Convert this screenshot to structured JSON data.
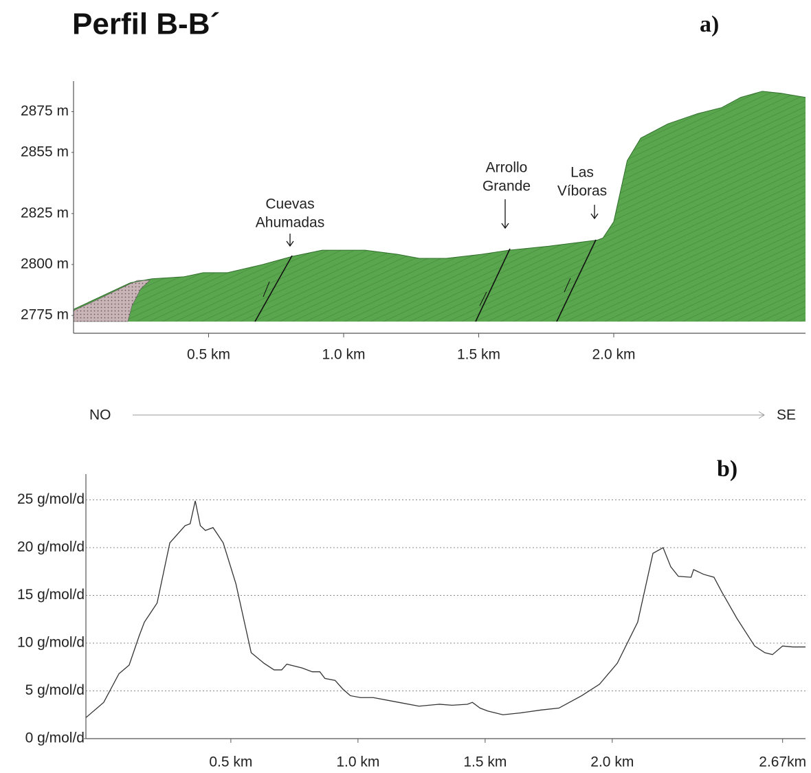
{
  "chart_data": [
    {
      "type": "area",
      "title": "Perfil B-B´",
      "panel": "a)",
      "color": "#5aa64e",
      "x": [
        0,
        0.21,
        0.29,
        0.41,
        0.48,
        0.57,
        0.7,
        0.81,
        0.92,
        1.08,
        1.2,
        1.28,
        1.38,
        1.51,
        1.61,
        1.76,
        1.94,
        1.96,
        2.0,
        2.05,
        2.1,
        2.2,
        2.31,
        2.4,
        2.47,
        2.55,
        2.62,
        2.71
      ],
      "values": [
        2778,
        2791,
        2793,
        2794,
        2796,
        2796,
        2800,
        2804,
        2807,
        2807,
        2805,
        2803,
        2803,
        2805,
        2807,
        2809,
        2812,
        2813,
        2821,
        2851,
        2862,
        2869,
        2874,
        2877,
        2882,
        2885,
        2884,
        2882
      ],
      "xlim": [
        0,
        2.71
      ],
      "ylim": [
        2772,
        2890
      ],
      "xticks": [
        {
          "value": 0.5,
          "label": "0.5 km"
        },
        {
          "value": 1.0,
          "label": "1.0 km"
        },
        {
          "value": 1.5,
          "label": "1.5 km"
        },
        {
          "value": 2.0,
          "label": "2.0 km"
        }
      ],
      "yticks": [
        {
          "value": 2775,
          "label": "2775 m"
        },
        {
          "value": 2800,
          "label": "2800 m"
        },
        {
          "value": 2825,
          "label": "2825 m"
        },
        {
          "value": 2855,
          "label": "2855 m"
        },
        {
          "value": 2875,
          "label": "2875 m"
        }
      ],
      "annotations": [
        {
          "text": [
            "Cuevas",
            "Ahumadas"
          ]
        },
        {
          "text": [
            "Arrollo",
            "Grande"
          ]
        },
        {
          "text": [
            "Las",
            "Víboras"
          ]
        }
      ],
      "direction": {
        "from": "NO",
        "to": "SE"
      }
    },
    {
      "type": "line",
      "panel": "b)",
      "color": "#333333",
      "grid": true,
      "x": [
        -0.07,
        0.0,
        0.06,
        0.1,
        0.14,
        0.16,
        0.21,
        0.26,
        0.32,
        0.34,
        0.36,
        0.38,
        0.4,
        0.43,
        0.47,
        0.52,
        0.58,
        0.63,
        0.67,
        0.7,
        0.72,
        0.78,
        0.82,
        0.85,
        0.87,
        0.91,
        0.94,
        0.97,
        1.01,
        1.06,
        1.16,
        1.24,
        1.32,
        1.37,
        1.43,
        1.45,
        1.48,
        1.51,
        1.57,
        1.64,
        1.72,
        1.79,
        1.88,
        1.95,
        2.02,
        2.1,
        2.16,
        2.2,
        2.23,
        2.26,
        2.31,
        2.32,
        2.36,
        2.4,
        2.43,
        2.49,
        2.56,
        2.6,
        2.63,
        2.67,
        2.71,
        2.76
      ],
      "values": [
        2.2,
        3.8,
        6.8,
        7.7,
        10.8,
        12.2,
        14.2,
        20.5,
        22.3,
        22.5,
        24.9,
        22.3,
        21.8,
        22.1,
        20.5,
        16.2,
        9.0,
        7.9,
        7.2,
        7.2,
        7.8,
        7.4,
        7.0,
        7.0,
        6.3,
        6.1,
        5.2,
        4.5,
        4.3,
        4.3,
        3.8,
        3.4,
        3.6,
        3.5,
        3.6,
        3.8,
        3.2,
        2.9,
        2.5,
        2.7,
        3.0,
        3.2,
        4.5,
        5.7,
        7.9,
        12.2,
        19.4,
        20.0,
        18.0,
        17.0,
        16.9,
        17.7,
        17.2,
        16.9,
        15.4,
        12.6,
        9.7,
        9.0,
        8.8,
        9.7,
        9.6,
        9.6
      ],
      "xlim": [
        -0.07,
        2.76
      ],
      "ylim": [
        0,
        27.7
      ],
      "xticks": [
        {
          "value": 0.5,
          "label": "0.5 km"
        },
        {
          "value": 1.0,
          "label": "1.0 km"
        },
        {
          "value": 1.5,
          "label": "1.5 km"
        },
        {
          "value": 2.0,
          "label": "2.0 km"
        },
        {
          "value": 2.67,
          "label": "2.67km"
        }
      ],
      "yticks": [
        {
          "value": 0,
          "label": "0 g/mol/d"
        },
        {
          "value": 5,
          "label": "5 g/mol/d"
        },
        {
          "value": 10,
          "label": "10 g/mol/d"
        },
        {
          "value": 15,
          "label": "15 g/mol/d"
        },
        {
          "value": 20,
          "label": "20 g/mol/d"
        },
        {
          "value": 25,
          "label": "25 g/mol/d"
        }
      ]
    }
  ]
}
